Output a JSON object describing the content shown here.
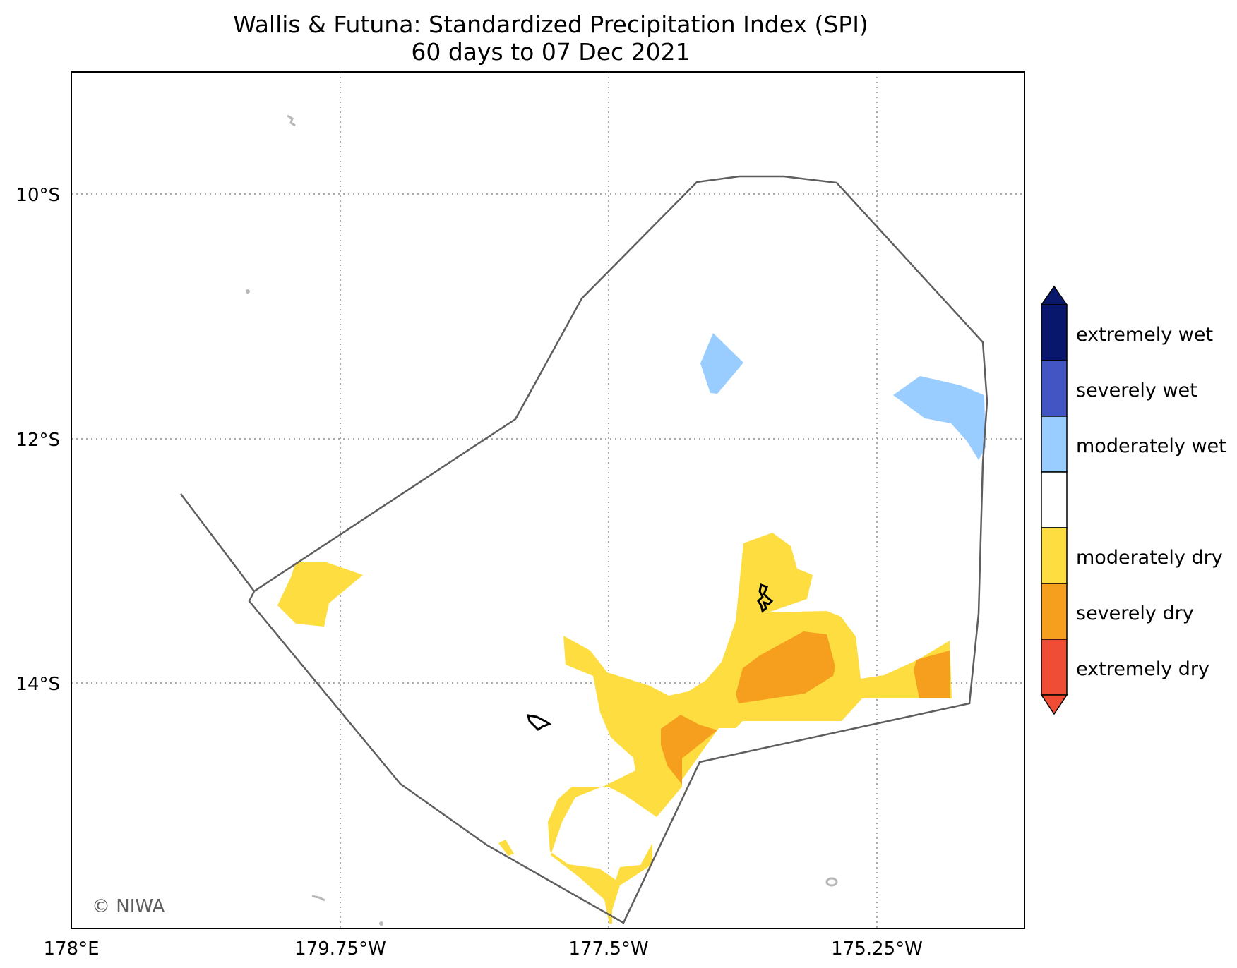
{
  "title": "Wallis & Futuna: Standardized Precipitation Index (SPI)",
  "subtitle": "60 days to 07 Dec 2021",
  "lat_ticks": [
    "10°S",
    "12°S",
    "14°S"
  ],
  "lon_ticks": [
    "178°E",
    "179.75°W",
    "177.5°W",
    "175.25°W"
  ],
  "legend": {
    "categories": [
      {
        "label": "extremely wet",
        "color": "#08166b"
      },
      {
        "label": "severely wet",
        "color": "#4355c2"
      },
      {
        "label": "moderately wet",
        "color": "#99ccff"
      },
      {
        "label": "",
        "color": "#ffffff"
      },
      {
        "label": "moderately dry",
        "color": "#fddd3f"
      },
      {
        "label": "severely dry",
        "color": "#f69e1e"
      },
      {
        "label": "extremely dry",
        "color": "#ef4d35"
      }
    ]
  },
  "credit": "© NIWA",
  "colors": {
    "moderately_wet": "#99ccff",
    "moderately_dry": "#fddd3f",
    "severely_dry": "#f69e1e",
    "eez_boundary": "#5e5e5e",
    "grid": "#aaaaaa"
  }
}
